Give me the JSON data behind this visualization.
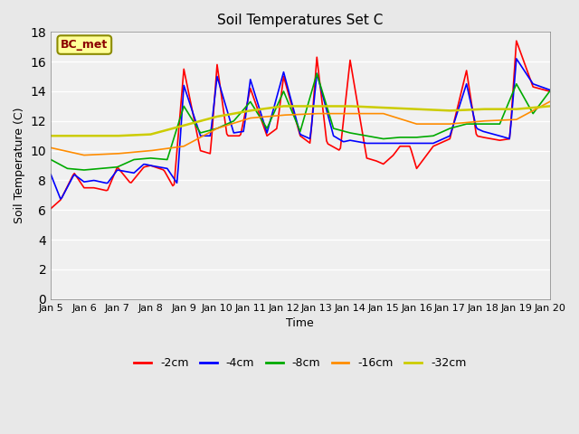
{
  "title": "Soil Temperatures Set C",
  "xlabel": "Time",
  "ylabel": "Soil Temperature (C)",
  "ylim": [
    0,
    18
  ],
  "xlim": [
    0,
    15
  ],
  "yticks": [
    0,
    2,
    4,
    6,
    8,
    10,
    12,
    14,
    16,
    18
  ],
  "xtick_labels": [
    "Jan 5",
    "Jan 6",
    "Jan 7",
    "Jan 8",
    "Jan 9",
    "Jan 10",
    "Jan 11",
    "Jan 12",
    "Jan 13",
    "Jan 14",
    "Jan 15",
    "Jan 16",
    "Jan 17",
    "Jan 18",
    "Jan 19",
    "Jan 20"
  ],
  "annotation_text": "BC_met",
  "annotation_color": "#8B0000",
  "annotation_bg": "#FFFF99",
  "colors": {
    "-2cm": "#FF0000",
    "-4cm": "#0000FF",
    "-8cm": "#00AA00",
    "-16cm": "#FF8C00",
    "-32cm": "#CCCC00"
  },
  "bg_color": "#E8E8E8",
  "plot_bg": "#F0F0F0",
  "legend_labels": [
    "-2cm",
    "-4cm",
    "-8cm",
    "-16cm",
    "-32cm"
  ],
  "n_points": 361,
  "days": 15
}
